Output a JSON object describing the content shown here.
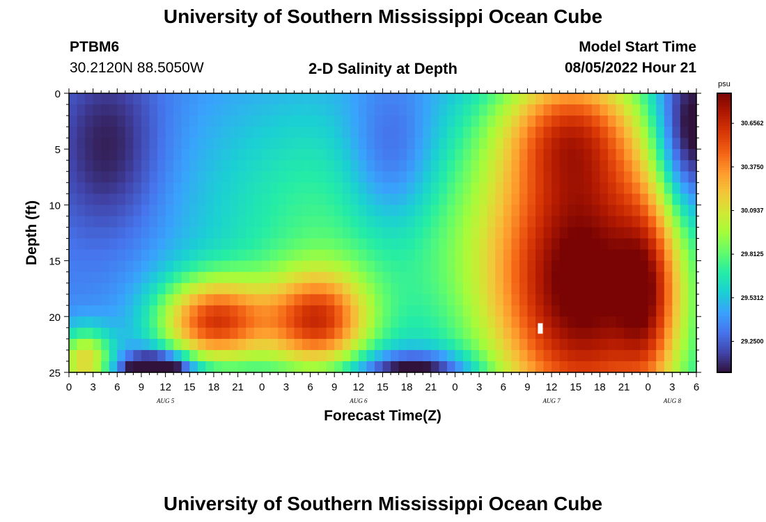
{
  "page": {
    "title": "University of Southern Mississippi Ocean Cube",
    "footer_title": "University of Southern Mississippi Ocean Cube",
    "station_id": "PTBM6",
    "station_coords": "30.2120N  88.5050W",
    "plot_title": "2-D Salinity at Depth",
    "model_start_label": "Model Start Time",
    "model_start_value": "08/05/2022 Hour 21"
  },
  "chart_data": {
    "type": "heatmap",
    "title": "2-D Salinity at Depth",
    "xlabel": "Forecast Time(Z)",
    "ylabel": "Depth (ft)",
    "units": "psu",
    "xlim": [
      0,
      78
    ],
    "ylim": [
      0,
      25
    ],
    "y_inverted": true,
    "x_tick_values": [
      0,
      3,
      6,
      9,
      12,
      15,
      18,
      21,
      24,
      27,
      30,
      33,
      36,
      39,
      42,
      45,
      48,
      51,
      54,
      57,
      60,
      63,
      66,
      69,
      72,
      75,
      78
    ],
    "x_tick_labels": [
      "0",
      "3",
      "6",
      "9",
      "12",
      "15",
      "18",
      "21",
      "0",
      "3",
      "6",
      "9",
      "12",
      "15",
      "18",
      "21",
      "0",
      "3",
      "6",
      "9",
      "12",
      "15",
      "18",
      "21",
      "0",
      "3",
      "6"
    ],
    "y_tick_values": [
      0,
      5,
      10,
      15,
      20,
      25
    ],
    "y_tick_labels": [
      "0",
      "5",
      "10",
      "15",
      "20",
      "25"
    ],
    "day_labels": [
      {
        "x": 12,
        "label": "AUG 5"
      },
      {
        "x": 36,
        "label": "AUG 6"
      },
      {
        "x": 60,
        "label": "AUG 7"
      },
      {
        "x": 75,
        "label": "AUG 8"
      }
    ],
    "colorbar": {
      "min": 29.05,
      "max": 30.85,
      "tick_labels": [
        "30.6562",
        "30.3750",
        "30.0937",
        "29.8125",
        "29.5312",
        "29.2500"
      ],
      "tick_values": [
        30.6562,
        30.375,
        30.0937,
        29.8125,
        29.5312,
        29.25
      ],
      "colors": [
        "#30123b",
        "#4145ab",
        "#4675ed",
        "#39a2fc",
        "#1bcfd4",
        "#24eca6",
        "#61fc6c",
        "#a4fc3b",
        "#d1e834",
        "#f3c63a",
        "#fe9b2d",
        "#f36315",
        "#d93806",
        "#b11901",
        "#7a0403"
      ]
    },
    "salinity_fields": {
      "background": 29.35,
      "blobs": [
        {
          "x": 34,
          "y": 12,
          "sx": 14,
          "sy": 9,
          "amp": 0.42
        },
        {
          "x": 18,
          "y": 20.5,
          "sx": 5,
          "sy": 2.8,
          "amp": 1.1
        },
        {
          "x": 31,
          "y": 20.5,
          "sx": 4.5,
          "sy": 3.2,
          "amp": 1.0
        },
        {
          "x": 2,
          "y": 24,
          "sx": 2.5,
          "sy": 2,
          "amp": 0.8
        },
        {
          "x": 64,
          "y": 17,
          "sx": 9,
          "sy": 11,
          "amp": 1.55
        },
        {
          "x": 62,
          "y": 3,
          "sx": 6,
          "sy": 4,
          "amp": 0.6
        },
        {
          "x": 72,
          "y": 18,
          "sx": 2.5,
          "sy": 6,
          "amp": 0.5
        }
      ],
      "lows": [
        {
          "x": 11,
          "y": 25,
          "sx": 3,
          "sy": 1.2,
          "amp": 0.9
        },
        {
          "x": 43,
          "y": 25,
          "sx": 5,
          "sy": 1.3,
          "amp": 0.6
        },
        {
          "x": 5,
          "y": 5,
          "sx": 5,
          "sy": 6,
          "amp": 0.3
        },
        {
          "x": 40,
          "y": 6,
          "sx": 4,
          "sy": 5,
          "amp": 0.35
        },
        {
          "x": 77,
          "y": 4,
          "sx": 3,
          "sy": 5,
          "amp": 0.6
        }
      ]
    }
  }
}
